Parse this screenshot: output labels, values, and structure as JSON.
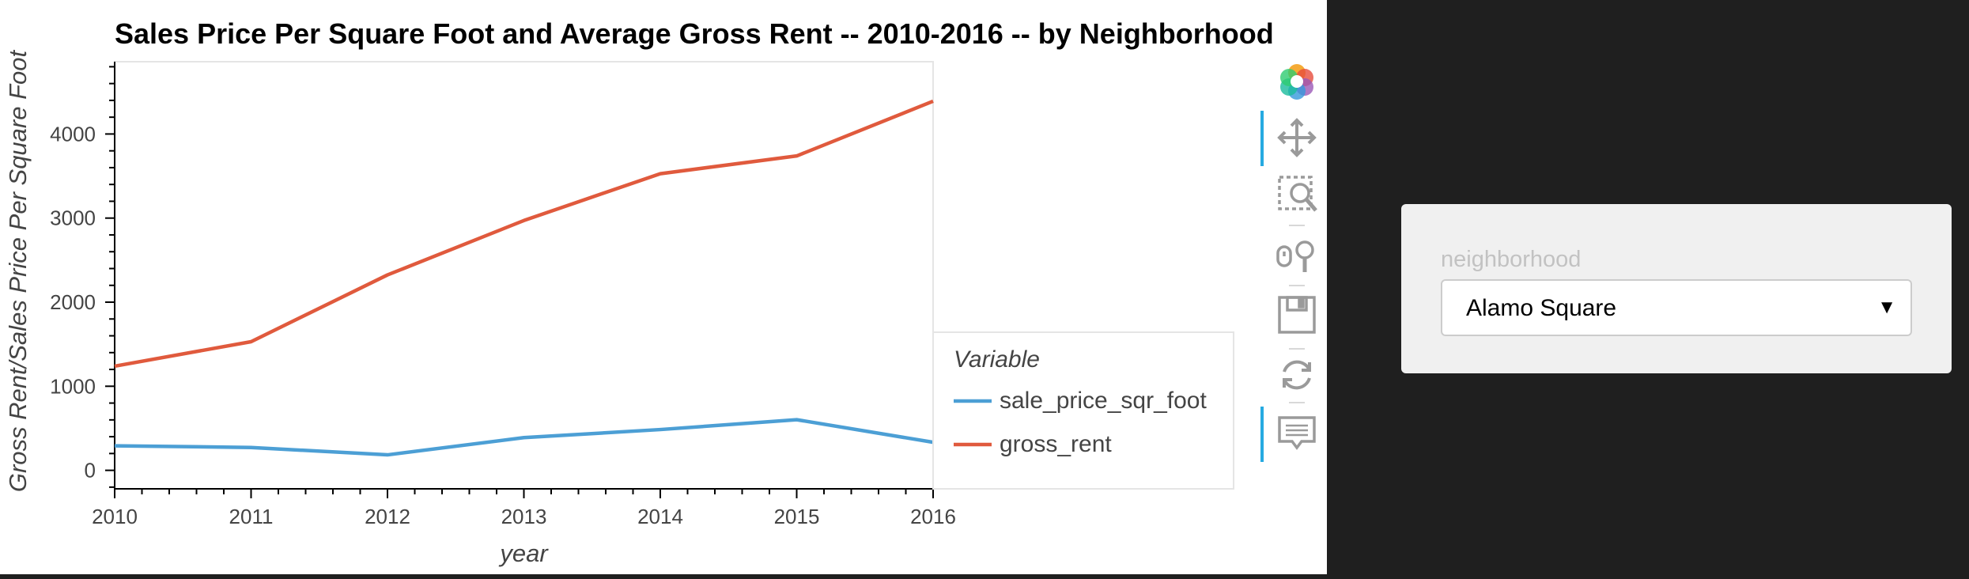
{
  "chart_data": {
    "type": "line",
    "title": "Sales Price Per Square Foot and Average Gross Rent -- 2010-2016 -- by Neighborhood",
    "xlabel": "year",
    "ylabel": "Gross Rent/Sales Price Per Square Foot",
    "x": [
      2010,
      2011,
      2012,
      2013,
      2014,
      2015,
      2016
    ],
    "xlim": [
      2010,
      2016
    ],
    "ylim": [
      -220,
      4860
    ],
    "xticks": [
      "2010",
      "2011",
      "2012",
      "2013",
      "2014",
      "2015",
      "2016"
    ],
    "yticks": [
      0,
      1000,
      2000,
      3000,
      4000
    ],
    "yticklabels": [
      "0",
      "1000",
      "2000",
      "3000",
      "4000"
    ],
    "legend_title": "Variable",
    "legend_position": "right",
    "grid": false,
    "series": [
      {
        "name": "sale_price_sqr_foot",
        "color": "#4c9fd5",
        "values": [
          292,
          272,
          184,
          389,
          485,
          602,
          334
        ]
      },
      {
        "name": "gross_rent",
        "color": "#e05a3d",
        "values": [
          1239,
          1530,
          2324,
          2971,
          3528,
          3739,
          4390
        ]
      }
    ]
  },
  "toolbar": {
    "tools": [
      {
        "icon": "bokeh-logo-icon"
      },
      {
        "icon": "pan-icon"
      },
      {
        "icon": "box-zoom-icon"
      },
      {
        "icon": "wheel-zoom-icon"
      },
      {
        "icon": "save-icon"
      },
      {
        "icon": "reset-icon"
      },
      {
        "icon": "hover-icon"
      }
    ]
  },
  "widget": {
    "label": "neighborhood",
    "selected": "Alamo Square"
  }
}
